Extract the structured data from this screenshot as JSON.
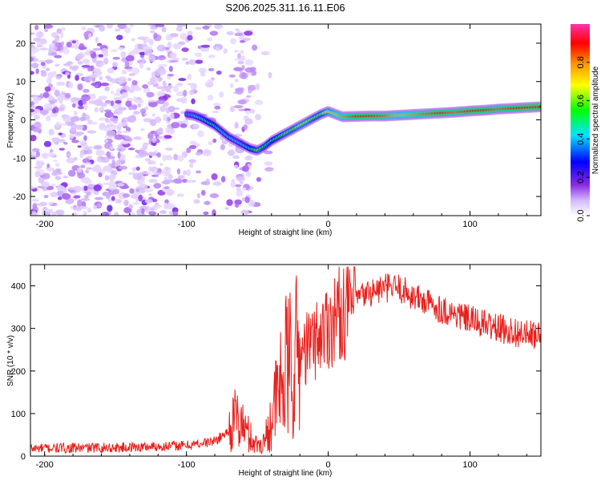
{
  "title": "S206.2025.311.16.11.E06",
  "chart_data": [
    {
      "type": "heatmap",
      "name": "spectrogram",
      "title": "",
      "xlabel": "Height of straight line (km)",
      "ylabel": "Frequency (Hz)",
      "xlim": [
        -210,
        150
      ],
      "ylim": [
        -25,
        25
      ],
      "xticks": [
        -200,
        -100,
        0,
        100
      ],
      "yticks": [
        -20,
        -10,
        0,
        10,
        20
      ],
      "colorbar": {
        "label": "Normalized spectral amplitude",
        "range": [
          0,
          1
        ],
        "ticks": [
          0.0,
          0.2,
          0.4,
          0.6,
          0.8
        ],
        "tick_labels": [
          "0.0",
          "0.2",
          "0.4",
          "0.6",
          "0.8"
        ],
        "colormap": [
          "#ffffff",
          "#d4b8ff",
          "#8a2be2",
          "#0000ff",
          "#00e5ff",
          "#00ff00",
          "#ffff00",
          "#ff8c00",
          "#ff0000",
          "#ff33aa"
        ]
      },
      "ridge": {
        "x": [
          -100,
          -95,
          -90,
          -85,
          -80,
          -75,
          -70,
          -65,
          -60,
          -55,
          -50,
          -45,
          -40,
          -35,
          -30,
          -25,
          -20,
          -15,
          -10,
          -5,
          0,
          5,
          10,
          20,
          30,
          40,
          50,
          60,
          70,
          80,
          90,
          100,
          110,
          120,
          130,
          140,
          150
        ],
        "y": [
          1.5,
          1.2,
          0.5,
          -0.5,
          -1.5,
          -3,
          -4.5,
          -5.5,
          -6.5,
          -7.5,
          -8,
          -7,
          -5.5,
          -4.5,
          -3.5,
          -2.5,
          -1.5,
          -0.5,
          0.5,
          1.5,
          2.2,
          1.5,
          0.8,
          0.9,
          1,
          1,
          1.2,
          1.4,
          1.6,
          1.8,
          2,
          2.3,
          2.5,
          2.8,
          3,
          3.2,
          3.4
        ],
        "amplitude": [
          0.35,
          0.4,
          0.45,
          0.5,
          0.5,
          0.45,
          0.45,
          0.4,
          0.45,
          0.5,
          0.6,
          0.55,
          0.5,
          0.55,
          0.6,
          0.6,
          0.65,
          0.65,
          0.6,
          0.6,
          0.7,
          0.75,
          0.8,
          0.9,
          0.9,
          0.85,
          0.75,
          0.8,
          0.85,
          0.9,
          0.85,
          0.9,
          0.9,
          0.85,
          0.9,
          0.9,
          0.9
        ]
      },
      "noise_band_x": [
        -210,
        -60
      ]
    },
    {
      "type": "line",
      "name": "snr",
      "title": "",
      "xlabel": "Height of straight line (km)",
      "ylabel": "SNR (10 * v/v)",
      "xlim": [
        -210,
        150
      ],
      "ylim": [
        0,
        450
      ],
      "xticks": [
        -200,
        -100,
        0,
        100
      ],
      "yticks": [
        0,
        100,
        200,
        300,
        400
      ],
      "line_color": "#e8201c",
      "envelope": {
        "x": [
          -210,
          -150,
          -100,
          -80,
          -70,
          -65,
          -60,
          -55,
          -50,
          -45,
          -40,
          -35,
          -30,
          -20,
          -10,
          0,
          10,
          20,
          30,
          40,
          50,
          60,
          80,
          100,
          120,
          140,
          150
        ],
        "y": [
          18,
          20,
          25,
          35,
          60,
          90,
          70,
          45,
          25,
          35,
          90,
          150,
          200,
          240,
          270,
          310,
          340,
          370,
          385,
          395,
          395,
          375,
          345,
          320,
          300,
          285,
          280
        ]
      }
    }
  ]
}
